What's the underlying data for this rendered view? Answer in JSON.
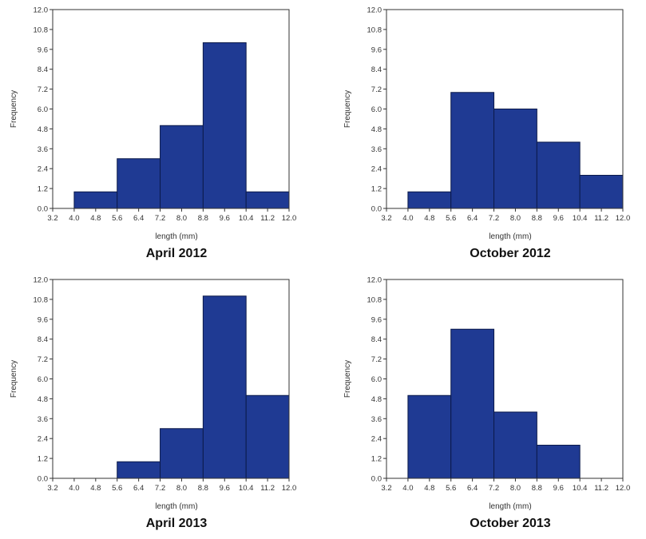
{
  "chart_data": [
    {
      "type": "bar",
      "title": "April 2012",
      "xlabel": "length (mm)",
      "ylabel": "Frequency",
      "x_ticks": [
        "3.2",
        "4.0",
        "4.8",
        "5.6",
        "6.4",
        "7.2",
        "8.0",
        "8.8",
        "9.6",
        "10.4",
        "11.2",
        "12.0"
      ],
      "y_ticks": [
        "0.0",
        "1.2",
        "2.4",
        "3.6",
        "4.8",
        "6.0",
        "7.2",
        "8.4",
        "9.6",
        "10.8",
        "12.0"
      ],
      "xlim": [
        3.2,
        12.0
      ],
      "ylim": [
        0,
        12
      ],
      "bins": [
        {
          "start": 4.0,
          "end": 5.6,
          "value": 1
        },
        {
          "start": 5.6,
          "end": 7.2,
          "value": 3
        },
        {
          "start": 7.2,
          "end": 8.8,
          "value": 5
        },
        {
          "start": 8.8,
          "end": 10.4,
          "value": 10
        },
        {
          "start": 10.4,
          "end": 12.0,
          "value": 1
        }
      ],
      "bar_color": "#1f3a93"
    },
    {
      "type": "bar",
      "title": "October 2012",
      "xlabel": "length (mm)",
      "ylabel": "Frequency",
      "x_ticks": [
        "3.2",
        "4.0",
        "4.8",
        "5.6",
        "6.4",
        "7.2",
        "8.0",
        "8.8",
        "9.6",
        "10.4",
        "11.2",
        "12.0"
      ],
      "y_ticks": [
        "0.0",
        "1.2",
        "2.4",
        "3.6",
        "4.8",
        "6.0",
        "7.2",
        "8.4",
        "9.6",
        "10.8",
        "12.0"
      ],
      "xlim": [
        3.2,
        12.0
      ],
      "ylim": [
        0,
        12
      ],
      "bins": [
        {
          "start": 4.0,
          "end": 5.6,
          "value": 1
        },
        {
          "start": 5.6,
          "end": 7.2,
          "value": 7
        },
        {
          "start": 7.2,
          "end": 8.8,
          "value": 6
        },
        {
          "start": 8.8,
          "end": 10.4,
          "value": 4
        },
        {
          "start": 10.4,
          "end": 12.0,
          "value": 2
        }
      ],
      "bar_color": "#1f3a93"
    },
    {
      "type": "bar",
      "title": "April 2013",
      "xlabel": "length (mm)",
      "ylabel": "Frequency",
      "x_ticks": [
        "3.2",
        "4.0",
        "4.8",
        "5.6",
        "6.4",
        "7.2",
        "8.0",
        "8.8",
        "9.6",
        "10.4",
        "11.2",
        "12.0"
      ],
      "y_ticks": [
        "0.0",
        "1.2",
        "2.4",
        "3.6",
        "4.8",
        "6.0",
        "7.2",
        "8.4",
        "9.6",
        "10.8",
        "12.0"
      ],
      "xlim": [
        3.2,
        12.0
      ],
      "ylim": [
        0,
        12
      ],
      "bins": [
        {
          "start": 5.6,
          "end": 7.2,
          "value": 1
        },
        {
          "start": 7.2,
          "end": 8.8,
          "value": 3
        },
        {
          "start": 8.8,
          "end": 10.4,
          "value": 11
        },
        {
          "start": 10.4,
          "end": 12.0,
          "value": 5
        }
      ],
      "bar_color": "#1f3a93"
    },
    {
      "type": "bar",
      "title": "October 2013",
      "xlabel": "length (mm)",
      "ylabel": "Frequency",
      "x_ticks": [
        "3.2",
        "4.0",
        "4.8",
        "5.6",
        "6.4",
        "7.2",
        "8.0",
        "8.8",
        "9.6",
        "10.4",
        "11.2",
        "12.0"
      ],
      "y_ticks": [
        "0.0",
        "1.2",
        "2.4",
        "3.6",
        "4.8",
        "6.0",
        "7.2",
        "8.4",
        "9.6",
        "10.8",
        "12.0"
      ],
      "xlim": [
        3.2,
        12.0
      ],
      "ylim": [
        0,
        12
      ],
      "bins": [
        {
          "start": 4.0,
          "end": 5.6,
          "value": 5
        },
        {
          "start": 5.6,
          "end": 7.2,
          "value": 9
        },
        {
          "start": 7.2,
          "end": 8.8,
          "value": 4
        },
        {
          "start": 8.8,
          "end": 10.4,
          "value": 2
        }
      ],
      "bar_color": "#1f3a93"
    }
  ]
}
